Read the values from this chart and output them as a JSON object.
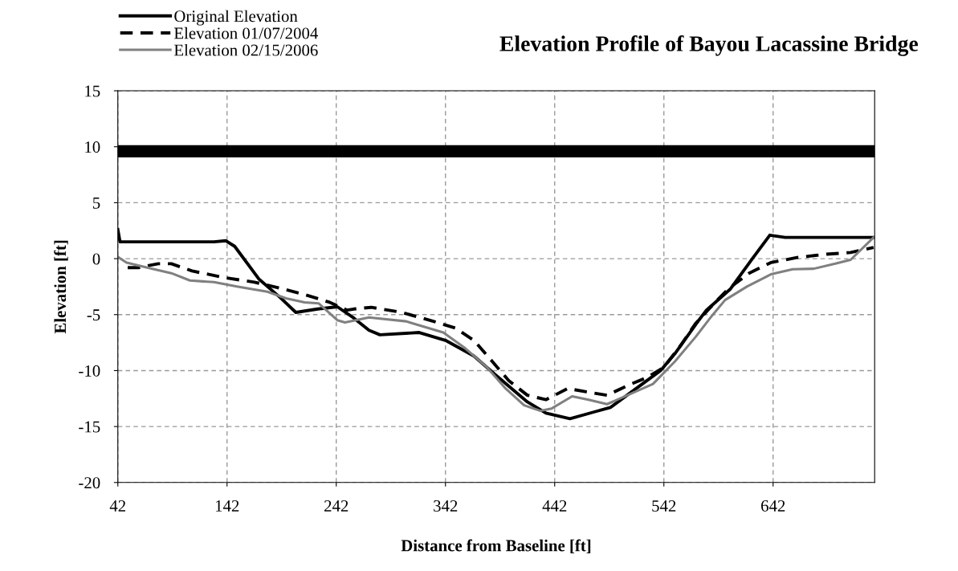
{
  "chart_data": {
    "type": "line",
    "title": "Elevation Profile of Bayou Lacassine Bridge",
    "xlabel": "Distance from Baseline [ft]",
    "ylabel": "Elevation [ft]",
    "xlim": [
      42,
      735
    ],
    "xticks": [
      42,
      142,
      242,
      342,
      442,
      542,
      642
    ],
    "ylim": [
      -20,
      15
    ],
    "yticks": [
      -20,
      -15,
      -10,
      -5,
      0,
      5,
      10,
      15
    ],
    "grid": true,
    "legend": "top left",
    "marker": "none",
    "ref_lines": [
      {
        "axis": "y",
        "value": 9.6,
        "color": "#000000"
      }
    ],
    "series": [
      {
        "name": "Original Elevation",
        "color": "#000000",
        "line_style": "solid",
        "x": [
          42,
          44,
          70,
          100,
          130,
          141,
          149,
          171,
          191,
          205,
          225,
          243,
          258,
          272,
          282,
          318,
          342,
          368,
          388,
          417,
          434,
          456,
          478,
          493,
          539,
          552,
          574,
          581,
          603,
          623,
          639,
          653,
          735
        ],
        "values": [
          2.6,
          1.5,
          1.5,
          1.5,
          1.5,
          1.6,
          1.1,
          -1.8,
          -3.5,
          -4.8,
          -4.5,
          -4.3,
          -5.3,
          -6.4,
          -6.8,
          -6.6,
          -7.3,
          -8.7,
          -10.4,
          -12.8,
          -13.8,
          -14.3,
          -13.7,
          -13.3,
          -10.0,
          -8.5,
          -5.5,
          -4.6,
          -2.7,
          0.0,
          2.1,
          1.9,
          1.9
        ]
      },
      {
        "name": "Elevation 01/07/2004",
        "color": "#000000",
        "line_style": "dashed",
        "x": [
          51,
          61,
          79,
          91,
          110,
          140,
          167,
          189,
          213,
          236,
          252,
          258,
          274,
          302,
          331,
          351,
          368,
          385,
          400,
          417,
          434,
          454,
          471,
          490,
          512,
          527,
          542,
          557,
          571,
          586,
          601,
          620,
          640,
          664,
          691,
          713,
          734
        ],
        "values": [
          -0.8,
          -0.8,
          -0.45,
          -0.45,
          -1.1,
          -1.7,
          -2.1,
          -2.6,
          -3.2,
          -3.9,
          -4.6,
          -4.5,
          -4.35,
          -4.8,
          -5.6,
          -6.2,
          -7.3,
          -9.2,
          -10.9,
          -12.2,
          -12.6,
          -11.6,
          -11.9,
          -12.2,
          -11.2,
          -10.6,
          -9.7,
          -7.8,
          -5.8,
          -4.2,
          -2.7,
          -1.3,
          -0.35,
          0.1,
          0.4,
          0.55,
          1.0
        ]
      },
      {
        "name": "Elevation 02/15/2006",
        "color": "#808080",
        "line_style": "solid",
        "x": [
          43,
          50,
          69,
          91,
          108,
          130,
          152,
          179,
          196,
          213,
          226,
          243,
          250,
          272,
          277,
          306,
          340,
          360,
          380,
          397,
          414,
          429,
          439,
          458,
          473,
          490,
          532,
          552,
          571,
          586,
          598,
          618,
          640,
          660,
          679,
          699,
          713,
          734
        ],
        "values": [
          0.1,
          -0.35,
          -0.8,
          -1.3,
          -1.95,
          -2.1,
          -2.5,
          -2.95,
          -3.55,
          -3.9,
          -4.0,
          -5.5,
          -5.7,
          -5.25,
          -5.3,
          -5.6,
          -6.6,
          -8.0,
          -9.7,
          -11.6,
          -13.1,
          -13.6,
          -13.4,
          -12.3,
          -12.6,
          -13.0,
          -11.2,
          -9.2,
          -7.0,
          -5.1,
          -3.7,
          -2.5,
          -1.4,
          -0.95,
          -0.9,
          -0.45,
          -0.1,
          1.9
        ]
      }
    ]
  }
}
